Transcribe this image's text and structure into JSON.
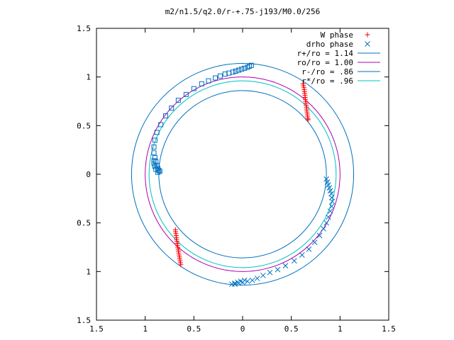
{
  "chart_data": {
    "type": "scatter",
    "title": "m2/n1.5/q2.0/r-+.75-j193/M0.0/256",
    "xlim": [
      -1.5,
      1.5
    ],
    "ylim": [
      -1.5,
      1.5
    ],
    "x_ticks": [
      -1.5,
      -1,
      -0.5,
      0,
      0.5,
      1,
      1.5
    ],
    "x_tick_labels": [
      "1.5",
      "1",
      "0.5",
      "0",
      "0.5",
      "1",
      "1.5"
    ],
    "y_ticks": [
      1.5,
      1,
      0.5,
      0,
      -0.5,
      -1,
      -1.5
    ],
    "y_tick_labels": [
      "1.5",
      "1",
      "0.5",
      "0",
      "0.5",
      "1",
      "1.5"
    ],
    "legend_position": "top-right",
    "circles": [
      {
        "name": "r+/ro = 1.14",
        "radius": 1.14,
        "color": "#0070c0"
      },
      {
        "name": "ro/ro = 1.00",
        "radius": 1.0,
        "color": "#b000b0"
      },
      {
        "name": "r-/ro = .86",
        "radius": 0.86,
        "color": "#0070c0"
      },
      {
        "name": "r*/ro = .96",
        "radius": 0.96,
        "color": "#00c0c0"
      }
    ],
    "series": [
      {
        "name": "W phase",
        "marker": "plus",
        "color": "#ff0000",
        "points": [
          [
            0.62,
            0.93
          ],
          [
            0.625,
            0.91
          ],
          [
            0.63,
            0.89
          ],
          [
            0.632,
            0.87
          ],
          [
            0.635,
            0.85
          ],
          [
            0.638,
            0.83
          ],
          [
            0.64,
            0.81
          ],
          [
            0.642,
            0.79
          ],
          [
            0.645,
            0.77
          ],
          [
            0.647,
            0.75
          ],
          [
            0.65,
            0.73
          ],
          [
            0.652,
            0.71
          ],
          [
            0.655,
            0.69
          ],
          [
            0.657,
            0.67
          ],
          [
            0.66,
            0.65
          ],
          [
            0.662,
            0.63
          ],
          [
            0.665,
            0.61
          ],
          [
            0.667,
            0.59
          ],
          [
            0.67,
            0.57
          ],
          [
            0.672,
            0.56
          ],
          [
            -0.69,
            -0.57
          ],
          [
            -0.688,
            -0.59
          ],
          [
            -0.685,
            -0.61
          ],
          [
            -0.682,
            -0.63
          ],
          [
            -0.68,
            -0.65
          ],
          [
            -0.677,
            -0.67
          ],
          [
            -0.674,
            -0.69
          ],
          [
            -0.671,
            -0.71
          ],
          [
            -0.668,
            -0.73
          ],
          [
            -0.665,
            -0.75
          ],
          [
            -0.662,
            -0.77
          ],
          [
            -0.658,
            -0.79
          ],
          [
            -0.655,
            -0.81
          ],
          [
            -0.652,
            -0.83
          ],
          [
            -0.648,
            -0.85
          ],
          [
            -0.645,
            -0.87
          ],
          [
            -0.642,
            -0.89
          ],
          [
            -0.638,
            -0.91
          ],
          [
            -0.635,
            -0.93
          ]
        ]
      },
      {
        "name": "drho phase",
        "marker": "cross",
        "color": "#0070c0",
        "points": [
          [
            0.86,
            -0.05
          ],
          [
            0.87,
            -0.08
          ],
          [
            0.88,
            -0.11
          ],
          [
            0.89,
            -0.14
          ],
          [
            0.9,
            -0.17
          ],
          [
            0.91,
            -0.2
          ],
          [
            0.915,
            -0.24
          ],
          [
            0.92,
            -0.28
          ],
          [
            0.915,
            -0.33
          ],
          [
            0.9,
            -0.38
          ],
          [
            0.88,
            -0.44
          ],
          [
            0.86,
            -0.5
          ],
          [
            0.83,
            -0.56
          ],
          [
            0.79,
            -0.63
          ],
          [
            0.74,
            -0.7
          ],
          [
            0.68,
            -0.77
          ],
          [
            0.61,
            -0.83
          ],
          [
            0.53,
            -0.89
          ],
          [
            0.44,
            -0.94
          ],
          [
            0.36,
            -0.98
          ],
          [
            0.28,
            -1.01
          ],
          [
            0.21,
            -1.04
          ],
          [
            0.15,
            -1.07
          ],
          [
            0.1,
            -1.09
          ],
          [
            0.05,
            -1.1
          ],
          [
            0.0,
            -1.11
          ],
          [
            -0.04,
            -1.12
          ],
          [
            -0.08,
            -1.13
          ],
          [
            -0.11,
            -1.13
          ],
          [
            -0.08,
            -1.12
          ],
          [
            -0.05,
            -1.11
          ],
          [
            -0.02,
            -1.1
          ],
          [
            0.02,
            -1.09
          ]
        ]
      },
      {
        "name": "",
        "marker": "square",
        "color": "#0070c0",
        "points": [
          [
            0.09,
            1.12
          ],
          [
            0.07,
            1.11
          ],
          [
            0.05,
            1.1
          ],
          [
            0.02,
            1.09
          ],
          [
            -0.01,
            1.08
          ],
          [
            -0.04,
            1.07
          ],
          [
            -0.07,
            1.06
          ],
          [
            -0.1,
            1.05
          ],
          [
            -0.14,
            1.04
          ],
          [
            -0.18,
            1.03
          ],
          [
            -0.23,
            1.01
          ],
          [
            -0.28,
            0.99
          ],
          [
            -0.35,
            0.96
          ],
          [
            -0.42,
            0.93
          ],
          [
            -0.5,
            0.88
          ],
          [
            -0.58,
            0.82
          ],
          [
            -0.66,
            0.76
          ],
          [
            -0.73,
            0.68
          ],
          [
            -0.79,
            0.6
          ],
          [
            -0.84,
            0.51
          ],
          [
            -0.88,
            0.43
          ],
          [
            -0.9,
            0.35
          ],
          [
            -0.91,
            0.28
          ],
          [
            -0.91,
            0.22
          ],
          [
            -0.9,
            0.17
          ],
          [
            -0.89,
            0.13
          ],
          [
            -0.88,
            0.09
          ],
          [
            -0.87,
            0.06
          ],
          [
            -0.86,
            0.04
          ],
          [
            -0.85,
            0.03
          ],
          [
            -0.87,
            0.02
          ],
          [
            -0.89,
            0.05
          ],
          [
            -0.9,
            0.08
          ],
          [
            -0.91,
            0.11
          ],
          [
            -0.91,
            0.14
          ]
        ]
      }
    ]
  }
}
